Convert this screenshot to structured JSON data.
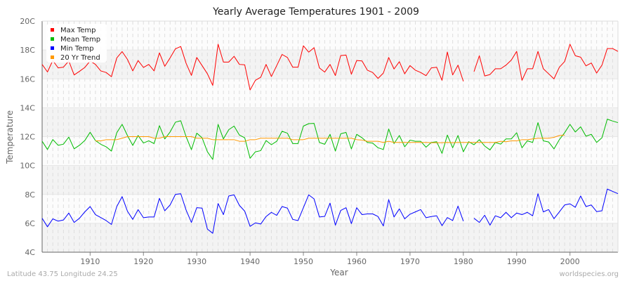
{
  "chart_data": {
    "type": "line",
    "title": "Yearly Average Temperatures 1901 - 2009",
    "xlabel": "Year",
    "ylabel": "Temperature",
    "xlim": [
      1901,
      2009
    ],
    "ylim": [
      4,
      20
    ],
    "y_ticks": [
      "4C",
      "6C",
      "8C",
      "10C",
      "12C",
      "14C",
      "16C",
      "18C",
      "20C"
    ],
    "y_tick_values": [
      4,
      6,
      8,
      10,
      12,
      14,
      16,
      18,
      20
    ],
    "x_ticks": [
      "1910",
      "1920",
      "1930",
      "1940",
      "1950",
      "1960",
      "1970",
      "1980",
      "1990",
      "2000"
    ],
    "x_tick_values": [
      1910,
      1920,
      1930,
      1940,
      1950,
      1960,
      1970,
      1980,
      1990,
      2000
    ],
    "grid": true,
    "legend_placement": "top-left",
    "x_start": 1901,
    "series": [
      {
        "name": "Max Temp",
        "color": "#ff0000",
        "values": [
          17.0,
          16.48,
          17.27,
          16.76,
          16.81,
          17.24,
          16.27,
          16.52,
          16.79,
          17.24,
          17.0,
          16.55,
          16.44,
          16.15,
          17.45,
          17.89,
          17.35,
          16.55,
          17.27,
          16.79,
          17.0,
          16.55,
          17.8,
          16.87,
          17.45,
          18.08,
          18.24,
          17.08,
          16.24,
          17.48,
          16.92,
          16.35,
          15.55,
          18.4,
          17.16,
          17.16,
          17.56,
          17.0,
          16.97,
          15.23,
          15.9,
          16.11,
          17.0,
          16.16,
          16.92,
          17.69,
          17.48,
          16.81,
          16.81,
          18.29,
          17.85,
          18.16,
          16.76,
          16.47,
          17.0,
          16.23,
          17.61,
          17.65,
          16.32,
          17.27,
          17.24,
          16.6,
          16.44,
          16.03,
          16.4,
          17.48,
          16.68,
          17.19,
          16.35,
          16.92,
          16.6,
          16.44,
          16.22,
          16.76,
          16.8,
          15.9,
          17.86,
          16.27,
          16.95,
          15.83,
          null,
          16.5,
          17.6,
          16.2,
          16.3,
          16.7,
          16.7,
          16.95,
          17.3,
          17.9,
          15.9,
          16.7,
          16.7,
          17.9,
          16.7,
          16.35,
          16.0,
          16.8,
          17.2,
          18.4,
          17.6,
          17.5,
          16.9,
          17.1,
          16.4,
          16.95,
          18.1,
          18.1,
          17.9
        ]
      },
      {
        "name": "Mean Temp",
        "color": "#00bb00",
        "values": [
          11.68,
          11.11,
          11.8,
          11.4,
          11.48,
          11.97,
          11.16,
          11.4,
          11.73,
          12.3,
          11.73,
          11.47,
          11.3,
          11.0,
          12.27,
          12.85,
          12.08,
          11.39,
          12.08,
          11.56,
          11.71,
          11.52,
          12.76,
          11.84,
          12.32,
          13.0,
          13.1,
          12.0,
          11.1,
          12.24,
          11.92,
          10.95,
          10.42,
          12.85,
          11.84,
          12.48,
          12.73,
          12.11,
          11.92,
          10.5,
          10.95,
          11.03,
          11.73,
          11.44,
          11.68,
          12.37,
          12.24,
          11.52,
          11.52,
          12.73,
          12.9,
          12.92,
          11.6,
          11.47,
          12.16,
          11.0,
          12.2,
          12.29,
          11.15,
          12.16,
          11.92,
          11.6,
          11.55,
          11.23,
          11.11,
          12.53,
          11.52,
          12.08,
          11.3,
          11.76,
          11.68,
          11.68,
          11.27,
          11.6,
          11.65,
          10.84,
          12.11,
          11.23,
          12.08,
          10.95,
          11.65,
          11.44,
          11.79,
          11.35,
          11.08,
          11.6,
          11.48,
          11.84,
          11.84,
          12.27,
          11.23,
          11.71,
          11.6,
          12.97,
          11.71,
          11.63,
          11.15,
          11.79,
          12.27,
          12.85,
          12.32,
          12.68,
          12.03,
          12.16,
          11.6,
          11.92,
          13.21,
          13.08,
          12.97
        ]
      },
      {
        "name": "Min Temp",
        "color": "#0000ff",
        "values": [
          6.35,
          5.76,
          6.31,
          6.15,
          6.23,
          6.71,
          6.06,
          6.35,
          6.79,
          7.16,
          6.6,
          6.4,
          6.19,
          5.92,
          7.16,
          7.85,
          6.84,
          6.27,
          6.95,
          6.39,
          6.44,
          6.44,
          7.73,
          6.87,
          7.27,
          8.0,
          8.05,
          6.92,
          6.06,
          7.08,
          7.05,
          5.6,
          5.31,
          7.37,
          6.6,
          7.89,
          7.97,
          7.24,
          6.84,
          5.79,
          6.03,
          5.95,
          6.47,
          6.76,
          6.55,
          7.16,
          7.05,
          6.27,
          6.19,
          7.08,
          7.97,
          7.69,
          6.44,
          6.48,
          7.4,
          5.87,
          6.89,
          7.08,
          5.98,
          7.08,
          6.6,
          6.65,
          6.65,
          6.47,
          5.82,
          7.64,
          6.44,
          7.0,
          6.31,
          6.63,
          6.79,
          6.95,
          6.39,
          6.47,
          6.52,
          5.84,
          6.4,
          6.19,
          7.19,
          6.15,
          null,
          6.35,
          6.06,
          6.56,
          5.87,
          6.52,
          6.39,
          6.76,
          6.39,
          6.71,
          6.6,
          6.76,
          6.52,
          8.05,
          6.79,
          6.95,
          6.32,
          6.79,
          7.27,
          7.35,
          7.11,
          7.89,
          7.16,
          7.27,
          6.81,
          6.87,
          8.37,
          8.21,
          8.05
        ]
      },
      {
        "name": "20 Yr Trend",
        "color": "#ff9900",
        "values": [
          null,
          null,
          null,
          null,
          null,
          null,
          null,
          null,
          null,
          null,
          11.71,
          11.71,
          11.79,
          11.79,
          11.79,
          11.89,
          12.0,
          12.0,
          12.0,
          12.0,
          12.0,
          11.89,
          11.89,
          12.0,
          12.0,
          12.0,
          12.0,
          12.0,
          12.0,
          11.89,
          11.89,
          11.89,
          11.79,
          11.79,
          11.79,
          11.79,
          11.79,
          11.68,
          11.68,
          11.79,
          11.79,
          11.89,
          11.89,
          11.89,
          11.89,
          11.89,
          11.89,
          11.79,
          11.79,
          11.79,
          11.89,
          11.89,
          11.89,
          11.89,
          11.89,
          11.89,
          11.89,
          11.89,
          11.89,
          11.79,
          11.76,
          11.68,
          11.68,
          11.68,
          11.6,
          11.68,
          11.6,
          11.6,
          11.6,
          11.6,
          11.6,
          11.6,
          11.6,
          11.58,
          11.58,
          11.58,
          11.6,
          11.58,
          11.6,
          11.6,
          11.6,
          11.6,
          11.6,
          11.6,
          11.6,
          11.6,
          11.68,
          11.65,
          11.71,
          11.71,
          11.79,
          11.79,
          11.84,
          11.89,
          11.89,
          11.89,
          11.95,
          12.08,
          12.11,
          null,
          null,
          null,
          null,
          null,
          null,
          null,
          null,
          null,
          null
        ]
      }
    ]
  },
  "footer": {
    "left": "Latitude 43.75 Longitude 24.25",
    "right": "worldspecies.org"
  }
}
